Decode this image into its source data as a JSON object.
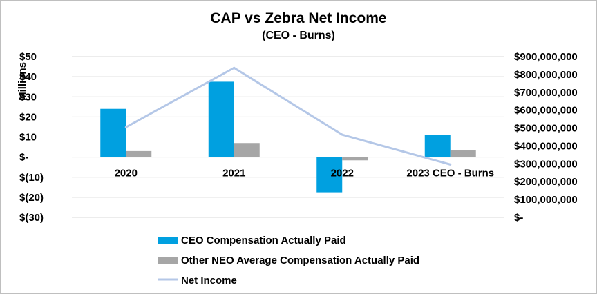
{
  "chart_data": {
    "type": "bar",
    "title": "CAP vs Zebra Net Income",
    "subtitle": "(CEO - Burns)",
    "categories": [
      "2020",
      "2021",
      "2022",
      "2023 CEO - Burns"
    ],
    "series": [
      {
        "name": "CEO Compensation Actually Paid",
        "type": "bar",
        "axis": "left",
        "color": "#00a0e0",
        "values": [
          24,
          37.5,
          -17.5,
          11.2
        ]
      },
      {
        "name": "Other NEO Average Compensation Actually Paid",
        "type": "bar",
        "axis": "left",
        "color": "#a6a6a6",
        "values": [
          3,
          7,
          -1.6,
          3.3
        ]
      },
      {
        "name": "Net Income",
        "type": "line",
        "axis": "right",
        "color": "#b4c7e7",
        "values": [
          505000000,
          837000000,
          463000000,
          296000000
        ]
      }
    ],
    "ylabel": "Millions",
    "ylim": [
      -30,
      50
    ],
    "yticks": [
      50,
      40,
      30,
      20,
      10,
      0,
      -10,
      -20,
      -30
    ],
    "ytick_labels": [
      "$50",
      "$40",
      "$30",
      "$20",
      "$10",
      "$-",
      "$(10)",
      "$(20)",
      "$(30)"
    ],
    "y2lim": [
      0,
      900000000
    ],
    "y2ticks": [
      900000000,
      800000000,
      700000000,
      600000000,
      500000000,
      400000000,
      300000000,
      200000000,
      100000000,
      0
    ],
    "y2tick_labels": [
      "$900,000,000",
      "$800,000,000",
      "$700,000,000",
      "$600,000,000",
      "$500,000,000",
      "$400,000,000",
      "$300,000,000",
      "$200,000,000",
      "$100,000,000",
      "$-"
    ],
    "grid": true,
    "legend_position": "bottom"
  }
}
